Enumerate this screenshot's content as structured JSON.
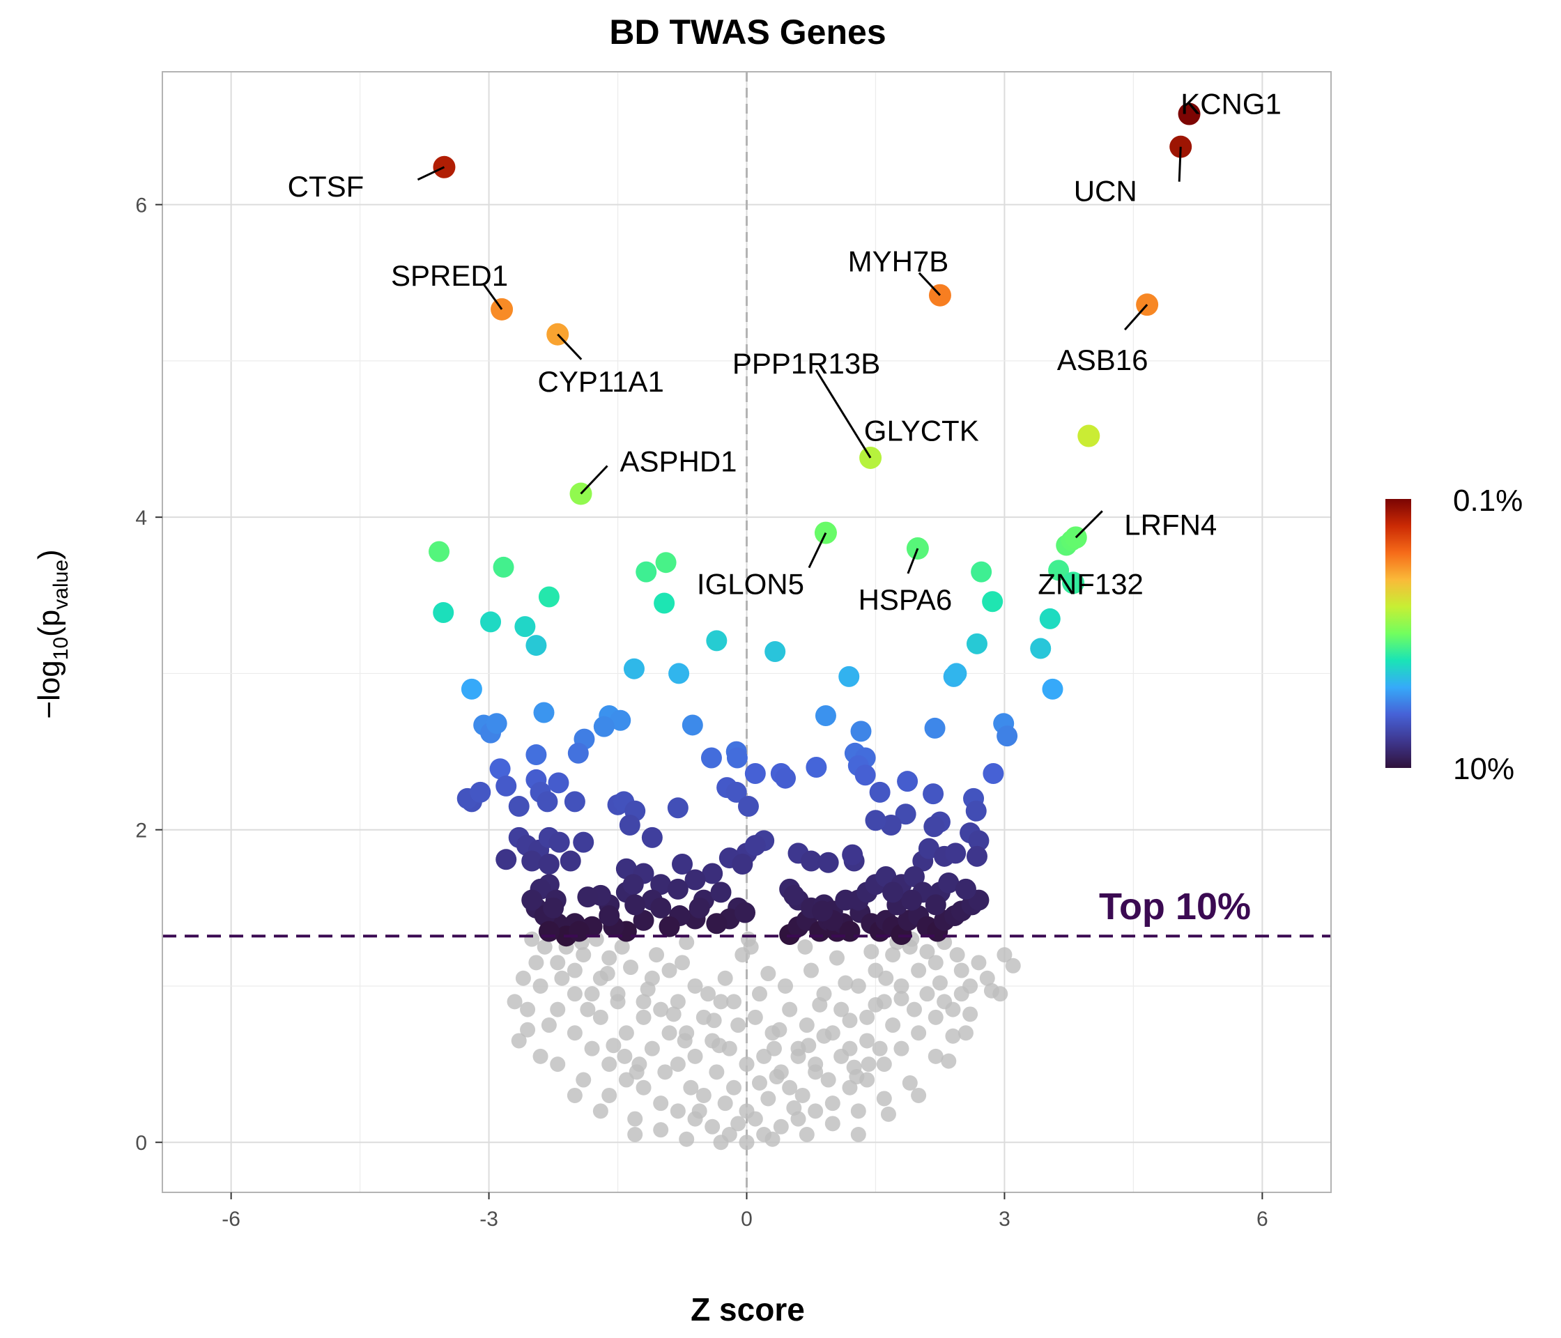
{
  "chart_data": {
    "type": "scatter",
    "title": "BD TWAS Genes",
    "xlabel": "Z score",
    "ylabel": {
      "prefix": "−log",
      "sub": "10",
      "open": "(p",
      "sub2": "value",
      "close": ")"
    },
    "xlim": [
      -6.8,
      6.8
    ],
    "ylim": [
      -0.32,
      6.85
    ],
    "x_ticks": [
      -6,
      -3,
      0,
      3,
      6
    ],
    "x_tick_labels": [
      "-6",
      "-3",
      "0",
      "3",
      "6"
    ],
    "y_ticks": [
      0,
      2,
      4,
      6
    ],
    "y_tick_labels": [
      "0",
      "2",
      "4",
      "6"
    ],
    "grid": true,
    "threshold": {
      "y": 1.32,
      "label": "Top 10%",
      "color": "#3b0a52"
    },
    "zero_line": {
      "x": 0,
      "color": "#b3b3b3"
    },
    "colorbar": {
      "top_label": "0.1%",
      "bottom_label": "10%",
      "placement": "right",
      "stops": [
        "#30123b",
        "#3e378f",
        "#4662d7",
        "#36aaf9",
        "#1ae4b6",
        "#72fe5e",
        "#c7ef34",
        "#faba39",
        "#f66b19",
        "#cb2a04",
        "#7a0403"
      ]
    },
    "background_color": "#bdbdbd",
    "labeled_genes": [
      {
        "name": "KCNG1",
        "x": 5.15,
        "y": 6.58
      },
      {
        "name": "UCN",
        "x": 5.05,
        "y": 6.37
      },
      {
        "name": "CTSF",
        "x": -3.52,
        "y": 6.24
      },
      {
        "name": "MYH7B",
        "x": 2.25,
        "y": 5.42
      },
      {
        "name": "ASB16",
        "x": 4.66,
        "y": 5.36
      },
      {
        "name": "SPRED1",
        "x": -2.85,
        "y": 5.33
      },
      {
        "name": "CYP11A1",
        "x": -2.2,
        "y": 5.17
      },
      {
        "name": "GLYCTK",
        "x": 3.98,
        "y": 4.52
      },
      {
        "name": "PPP1R13B",
        "x": 1.44,
        "y": 4.38
      },
      {
        "name": "ASPHD1",
        "x": -1.93,
        "y": 4.15
      },
      {
        "name": "IGLON5",
        "x": 0.92,
        "y": 3.9
      },
      {
        "name": "LRFN4",
        "x": 3.83,
        "y": 3.87
      },
      {
        "name": "HSPA6",
        "x": 1.99,
        "y": 3.8
      },
      {
        "name": "ZNF132",
        "x": 3.8,
        "y": 3.58
      }
    ],
    "significant_points": [
      [
        -3.58,
        3.78
      ],
      [
        -3.53,
        3.39
      ],
      [
        -2.83,
        3.68
      ],
      [
        -2.98,
        3.33
      ],
      [
        -2.58,
        3.3
      ],
      [
        -2.45,
        3.18
      ],
      [
        -2.3,
        3.49
      ],
      [
        -1.17,
        3.65
      ],
      [
        -0.94,
        3.71
      ],
      [
        -0.96,
        3.45
      ],
      [
        -0.35,
        3.21
      ],
      [
        0.33,
        3.14
      ],
      [
        1.19,
        2.98
      ],
      [
        2.41,
        2.98
      ],
      [
        2.44,
        3.0
      ],
      [
        2.73,
        3.65
      ],
      [
        2.86,
        3.46
      ],
      [
        2.68,
        3.19
      ],
      [
        3.53,
        3.35
      ],
      [
        3.63,
        3.66
      ],
      [
        3.72,
        3.82
      ],
      [
        3.78,
        3.85
      ],
      [
        3.42,
        3.16
      ],
      [
        3.56,
        2.9
      ],
      [
        -3.2,
        2.9
      ],
      [
        -1.31,
        3.03
      ],
      [
        -0.79,
        3.0
      ],
      [
        -0.63,
        2.67
      ],
      [
        0.92,
        2.73
      ],
      [
        1.33,
        2.63
      ],
      [
        2.19,
        2.65
      ],
      [
        2.99,
        2.68
      ],
      [
        3.03,
        2.6
      ],
      [
        -2.36,
        2.75
      ],
      [
        -1.6,
        2.73
      ],
      [
        -1.47,
        2.7
      ],
      [
        -1.66,
        2.66
      ],
      [
        -3.06,
        2.67
      ],
      [
        -2.98,
        2.62
      ],
      [
        -2.91,
        2.68
      ],
      [
        -1.89,
        2.58
      ],
      [
        -1.96,
        2.49
      ],
      [
        -2.45,
        2.48
      ],
      [
        -0.41,
        2.46
      ],
      [
        -0.12,
        2.5
      ],
      [
        -0.11,
        2.46
      ],
      [
        0.1,
        2.36
      ],
      [
        0.4,
        2.36
      ],
      [
        0.45,
        2.33
      ],
      [
        0.81,
        2.4
      ],
      [
        1.26,
        2.49
      ],
      [
        1.38,
        2.46
      ],
      [
        1.3,
        2.41
      ],
      [
        1.38,
        2.35
      ],
      [
        1.87,
        2.31
      ],
      [
        2.87,
        2.36
      ],
      [
        -2.87,
        2.39
      ],
      [
        -2.8,
        2.28
      ],
      [
        -2.45,
        2.32
      ],
      [
        -2.4,
        2.24
      ],
      [
        -2.19,
        2.3
      ],
      [
        -2.32,
        2.18
      ],
      [
        -3.2,
        2.18
      ],
      [
        -3.25,
        2.2
      ],
      [
        -3.1,
        2.24
      ],
      [
        -2.65,
        2.15
      ],
      [
        -2.0,
        2.18
      ],
      [
        -1.5,
        2.16
      ],
      [
        -1.43,
        2.18
      ],
      [
        -1.3,
        2.12
      ],
      [
        -0.8,
        2.14
      ],
      [
        -0.23,
        2.27
      ],
      [
        -0.12,
        2.24
      ],
      [
        0.02,
        2.15
      ],
      [
        1.55,
        2.24
      ],
      [
        1.85,
        2.1
      ],
      [
        1.68,
        2.03
      ],
      [
        2.25,
        2.05
      ],
      [
        2.17,
        2.23
      ],
      [
        2.64,
        2.2
      ],
      [
        2.67,
        2.12
      ],
      [
        -1.36,
        2.03
      ],
      [
        1.5,
        2.06
      ],
      [
        2.18,
        2.02
      ],
      [
        2.6,
        1.98
      ],
      [
        2.7,
        1.93
      ],
      [
        -2.65,
        1.95
      ],
      [
        -2.56,
        1.9
      ],
      [
        -2.42,
        1.87
      ],
      [
        -2.3,
        1.95
      ],
      [
        -2.18,
        1.92
      ],
      [
        -1.9,
        1.92
      ],
      [
        -1.1,
        1.95
      ],
      [
        0.0,
        1.85
      ],
      [
        0.2,
        1.93
      ],
      [
        0.1,
        1.9
      ],
      [
        -0.2,
        1.82
      ],
      [
        -0.05,
        1.78
      ],
      [
        0.6,
        1.85
      ],
      [
        0.75,
        1.8
      ],
      [
        0.95,
        1.79
      ],
      [
        1.25,
        1.8
      ],
      [
        1.23,
        1.84
      ],
      [
        2.05,
        1.8
      ],
      [
        2.12,
        1.88
      ],
      [
        2.3,
        1.83
      ],
      [
        2.43,
        1.85
      ],
      [
        2.68,
        1.83
      ],
      [
        -2.8,
        1.81
      ],
      [
        -2.5,
        1.8
      ],
      [
        -2.3,
        1.78
      ],
      [
        -2.05,
        1.8
      ],
      [
        -1.4,
        1.75
      ],
      [
        -1.2,
        1.72
      ],
      [
        -0.75,
        1.78
      ],
      [
        -0.4,
        1.72
      ],
      [
        -1.4,
        1.6
      ],
      [
        -1.32,
        1.65
      ],
      [
        -0.6,
        1.68
      ],
      [
        -1.0,
        1.65
      ],
      [
        -2.3,
        1.65
      ],
      [
        -2.4,
        1.62
      ],
      [
        -2.22,
        1.55
      ],
      [
        -2.45,
        1.5
      ],
      [
        -1.6,
        1.52
      ],
      [
        -1.7,
        1.58
      ],
      [
        -1.1,
        1.55
      ],
      [
        -1.0,
        1.5
      ],
      [
        -0.5,
        1.55
      ],
      [
        -0.1,
        1.5
      ],
      [
        -0.2,
        1.43
      ],
      [
        -0.35,
        1.4
      ],
      [
        -0.6,
        1.43
      ],
      [
        -0.78,
        1.45
      ],
      [
        -0.9,
        1.38
      ],
      [
        -1.2,
        1.42
      ],
      [
        -1.4,
        1.35
      ],
      [
        -1.55,
        1.38
      ],
      [
        -1.8,
        1.38
      ],
      [
        -2.0,
        1.4
      ],
      [
        -2.2,
        1.4
      ],
      [
        -2.35,
        1.45
      ],
      [
        -2.1,
        1.32
      ],
      [
        -1.95,
        1.35
      ],
      [
        0.5,
        1.33
      ],
      [
        0.6,
        1.38
      ],
      [
        0.7,
        1.42
      ],
      [
        0.85,
        1.35
      ],
      [
        0.95,
        1.42
      ],
      [
        1.05,
        1.35
      ],
      [
        1.12,
        1.4
      ],
      [
        1.2,
        1.35
      ],
      [
        1.32,
        1.47
      ],
      [
        1.45,
        1.4
      ],
      [
        1.55,
        1.35
      ],
      [
        1.62,
        1.42
      ],
      [
        1.7,
        1.38
      ],
      [
        1.8,
        1.33
      ],
      [
        1.88,
        1.42
      ],
      [
        2.0,
        1.45
      ],
      [
        2.1,
        1.38
      ],
      [
        2.22,
        1.35
      ],
      [
        2.3,
        1.42
      ],
      [
        2.42,
        1.45
      ],
      [
        2.5,
        1.48
      ],
      [
        2.62,
        1.52
      ],
      [
        2.7,
        1.55
      ],
      [
        0.5,
        1.62
      ],
      [
        0.6,
        1.55
      ],
      [
        0.75,
        1.5
      ],
      [
        0.9,
        1.52
      ],
      [
        1.0,
        1.48
      ],
      [
        1.15,
        1.55
      ],
      [
        1.3,
        1.55
      ],
      [
        1.4,
        1.6
      ],
      [
        1.5,
        1.65
      ],
      [
        1.62,
        1.7
      ],
      [
        1.8,
        1.65
      ],
      [
        1.95,
        1.7
      ],
      [
        2.05,
        1.6
      ],
      [
        2.25,
        1.6
      ],
      [
        2.35,
        1.66
      ],
      [
        1.0,
        1.42
      ],
      [
        0.88,
        1.48
      ],
      [
        1.75,
        1.52
      ],
      [
        1.92,
        1.55
      ],
      [
        -0.02,
        1.47
      ],
      [
        -2.5,
        1.55
      ],
      [
        -1.3,
        1.52
      ],
      [
        -0.8,
        1.62
      ],
      [
        -0.3,
        1.6
      ],
      [
        -1.85,
        1.57
      ],
      [
        -2.25,
        1.5
      ],
      [
        0.55,
        1.58
      ],
      [
        1.7,
        1.6
      ],
      [
        2.2,
        1.52
      ],
      [
        -1.6,
        1.45
      ],
      [
        -0.55,
        1.5
      ],
      [
        2.55,
        1.62
      ],
      [
        -2.3,
        1.35
      ]
    ],
    "background_points": [
      [
        -2.5,
        1.3
      ],
      [
        -2.35,
        1.25
      ],
      [
        -2.2,
        1.15
      ],
      [
        -2.1,
        1.25
      ],
      [
        -2.0,
        1.1
      ],
      [
        -1.9,
        1.2
      ],
      [
        -1.7,
        1.05
      ],
      [
        -1.6,
        1.18
      ],
      [
        -1.5,
        0.95
      ],
      [
        -1.35,
        1.12
      ],
      [
        -1.2,
        0.9
      ],
      [
        -1.1,
        1.05
      ],
      [
        -1.0,
        0.85
      ],
      [
        -0.9,
        1.1
      ],
      [
        -0.8,
        0.9
      ],
      [
        -0.7,
        0.7
      ],
      [
        -0.6,
        1.0
      ],
      [
        -0.5,
        0.8
      ],
      [
        -0.4,
        0.65
      ],
      [
        -0.3,
        0.9
      ],
      [
        -0.2,
        0.6
      ],
      [
        -0.1,
        0.75
      ],
      [
        0.0,
        0.5
      ],
      [
        0.1,
        0.8
      ],
      [
        0.2,
        0.55
      ],
      [
        0.3,
        0.7
      ],
      [
        0.4,
        0.45
      ],
      [
        0.5,
        0.85
      ],
      [
        0.6,
        0.6
      ],
      [
        0.7,
        0.75
      ],
      [
        0.8,
        0.5
      ],
      [
        0.9,
        0.95
      ],
      [
        1.0,
        0.7
      ],
      [
        1.1,
        0.85
      ],
      [
        1.2,
        0.6
      ],
      [
        1.3,
        1.0
      ],
      [
        1.4,
        0.8
      ],
      [
        1.5,
        1.1
      ],
      [
        1.6,
        0.9
      ],
      [
        1.7,
        1.2
      ],
      [
        1.8,
        1.0
      ],
      [
        1.9,
        1.25
      ],
      [
        2.0,
        1.1
      ],
      [
        2.1,
        1.22
      ],
      [
        2.2,
        1.15
      ],
      [
        2.3,
        1.28
      ],
      [
        2.5,
        1.1
      ],
      [
        2.7,
        1.15
      ],
      [
        2.6,
        1.0
      ],
      [
        2.4,
        0.85
      ],
      [
        2.2,
        0.8
      ],
      [
        2.0,
        0.7
      ],
      [
        1.8,
        0.6
      ],
      [
        1.6,
        0.5
      ],
      [
        1.4,
        0.4
      ],
      [
        1.2,
        0.35
      ],
      [
        1.0,
        0.25
      ],
      [
        0.8,
        0.2
      ],
      [
        0.6,
        0.15
      ],
      [
        0.4,
        0.1
      ],
      [
        0.2,
        0.05
      ],
      [
        0.0,
        0.0
      ],
      [
        -0.2,
        0.05
      ],
      [
        -0.4,
        0.1
      ],
      [
        -0.6,
        0.15
      ],
      [
        -0.8,
        0.2
      ],
      [
        -1.0,
        0.25
      ],
      [
        -1.2,
        0.35
      ],
      [
        -1.4,
        0.4
      ],
      [
        -1.6,
        0.5
      ],
      [
        -1.8,
        0.6
      ],
      [
        -2.0,
        0.7
      ],
      [
        -2.2,
        0.85
      ],
      [
        -2.4,
        1.0
      ],
      [
        -2.3,
        0.75
      ],
      [
        -2.6,
        1.05
      ],
      [
        -2.65,
        0.65
      ],
      [
        -2.2,
        0.5
      ],
      [
        -1.9,
        0.4
      ],
      [
        -1.6,
        0.3
      ],
      [
        -1.3,
        0.15
      ],
      [
        -1.0,
        0.08
      ],
      [
        -0.7,
        0.02
      ],
      [
        -0.3,
        0.0
      ],
      [
        0.3,
        0.02
      ],
      [
        0.7,
        0.05
      ],
      [
        1.0,
        0.12
      ],
      [
        1.3,
        0.2
      ],
      [
        1.6,
        0.28
      ],
      [
        1.9,
        0.38
      ],
      [
        2.2,
        0.55
      ],
      [
        2.4,
        0.68
      ],
      [
        2.6,
        0.82
      ],
      [
        2.8,
        1.05
      ],
      [
        2.5,
        0.95
      ],
      [
        2.3,
        0.9
      ],
      [
        3.1,
        1.13
      ],
      [
        2.95,
        0.95
      ],
      [
        2.85,
        0.97
      ],
      [
        -0.5,
        0.3
      ],
      [
        -0.25,
        0.25
      ],
      [
        0.0,
        0.2
      ],
      [
        0.25,
        0.28
      ],
      [
        0.5,
        0.35
      ],
      [
        -0.8,
        0.5
      ],
      [
        0.8,
        0.45
      ],
      [
        -1.1,
        0.6
      ],
      [
        1.1,
        0.55
      ],
      [
        -1.4,
        0.7
      ],
      [
        1.4,
        0.65
      ],
      [
        -1.7,
        0.8
      ],
      [
        1.7,
        0.75
      ],
      [
        -0.6,
        0.55
      ],
      [
        0.6,
        0.55
      ],
      [
        -0.9,
        0.7
      ],
      [
        0.9,
        0.68
      ],
      [
        -1.2,
        0.8
      ],
      [
        1.2,
        0.78
      ],
      [
        -1.5,
        0.9
      ],
      [
        1.5,
        0.88
      ],
      [
        -1.8,
        0.95
      ],
      [
        1.8,
        0.92
      ],
      [
        -0.35,
        0.45
      ],
      [
        0.35,
        0.42
      ],
      [
        -0.15,
        0.35
      ],
      [
        0.15,
        0.38
      ],
      [
        -0.45,
        0.95
      ],
      [
        0.45,
        1.0
      ],
      [
        -0.75,
        1.15
      ],
      [
        0.75,
        1.1
      ],
      [
        -1.05,
        1.2
      ],
      [
        1.05,
        1.18
      ],
      [
        -1.45,
        1.25
      ],
      [
        1.45,
        1.22
      ],
      [
        -1.75,
        1.3
      ],
      [
        1.75,
        1.28
      ],
      [
        -0.05,
        1.2
      ],
      [
        0.05,
        1.25
      ],
      [
        -0.25,
        1.05
      ],
      [
        0.25,
        1.08
      ],
      [
        -2.0,
        0.95
      ],
      [
        -1.85,
        0.85
      ],
      [
        1.95,
        0.85
      ],
      [
        2.1,
        0.95
      ],
      [
        -2.15,
        1.05
      ],
      [
        2.25,
        1.02
      ],
      [
        -0.95,
        0.45
      ],
      [
        0.95,
        0.4
      ],
      [
        -1.25,
        0.5
      ],
      [
        1.25,
        0.48
      ],
      [
        -1.55,
        0.62
      ],
      [
        1.55,
        0.6
      ],
      [
        -0.65,
        0.35
      ],
      [
        0.65,
        0.3
      ],
      [
        -2.7,
        0.9
      ],
      [
        -2.55,
        0.85
      ],
      [
        3.0,
        1.2
      ],
      [
        -2.4,
        0.55
      ],
      [
        2.35,
        0.52
      ],
      [
        1.65,
        0.18
      ],
      [
        -1.7,
        0.2
      ],
      [
        0.1,
        0.15
      ],
      [
        -0.1,
        0.12
      ],
      [
        0.55,
        0.22
      ],
      [
        -0.55,
        0.2
      ],
      [
        1.3,
        0.05
      ],
      [
        -1.3,
        0.05
      ],
      [
        2.0,
        0.3
      ],
      [
        -2.0,
        0.3
      ],
      [
        1.42,
        0.5
      ],
      [
        -1.42,
        0.55
      ],
      [
        0.38,
        0.72
      ],
      [
        -0.38,
        0.78
      ],
      [
        0.15,
        0.95
      ],
      [
        -0.15,
        0.9
      ],
      [
        0.85,
        0.88
      ],
      [
        -0.85,
        0.82
      ],
      [
        1.15,
        1.02
      ],
      [
        -1.15,
        0.98
      ],
      [
        1.62,
        1.05
      ],
      [
        -1.62,
        1.08
      ],
      [
        2.45,
        1.2
      ],
      [
        -2.45,
        1.15
      ],
      [
        0.02,
        1.3
      ],
      [
        -0.7,
        1.28
      ],
      [
        0.68,
        1.25
      ],
      [
        1.92,
        1.3
      ],
      [
        -1.92,
        1.28
      ],
      [
        0.32,
        0.6
      ],
      [
        -0.32,
        0.62
      ],
      [
        0.72,
        0.62
      ],
      [
        -0.72,
        0.65
      ],
      [
        1.28,
        0.42
      ],
      [
        -1.28,
        0.45
      ],
      [
        2.55,
        0.7
      ],
      [
        -2.55,
        0.72
      ]
    ],
    "annotations": [
      "KCNG1",
      "UCN",
      "CTSF",
      "MYH7B",
      "ASB16",
      "SPRED1",
      "CYP11A1",
      "GLYCTK",
      "PPP1R13B",
      "ASPHD1",
      "IGLON5",
      "LRFN4",
      "HSPA6",
      "ZNF132"
    ]
  }
}
